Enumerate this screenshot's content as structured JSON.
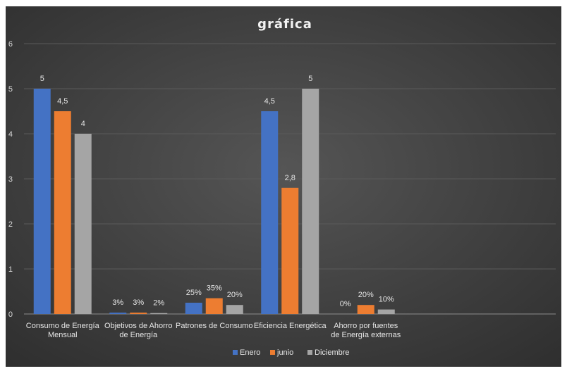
{
  "chart_data": {
    "type": "bar",
    "title": "gráfica",
    "categories": [
      [
        "Consumo de Energía",
        "Mensual"
      ],
      [
        "Objetivos de Ahorro",
        "de Energía"
      ],
      [
        "Patrones de Consumo"
      ],
      [
        "Eficiencia Energética"
      ],
      [
        "Ahorro por fuentes",
        "de Energía  externas"
      ]
    ],
    "series": [
      {
        "name": "Enero",
        "color": "#4472c4",
        "values": [
          5,
          0.03,
          0.25,
          4.5,
          0
        ],
        "labels": [
          "5",
          "3%",
          "25%",
          "4,5",
          "0%"
        ]
      },
      {
        "name": "junio",
        "color": "#ed7d31",
        "values": [
          4.5,
          0.03,
          0.35,
          2.8,
          0.2
        ],
        "labels": [
          "4,5",
          "3%",
          "35%",
          "2,8",
          "20%"
        ]
      },
      {
        "name": "Diciembre",
        "color": "#a5a5a5",
        "values": [
          4,
          0.02,
          0.2,
          5,
          0.1
        ],
        "labels": [
          "4",
          "2%",
          "20%",
          "5",
          "10%"
        ]
      }
    ],
    "yticks": [
      "0",
      "1",
      "2",
      "3",
      "4",
      "5",
      "6"
    ],
    "ylim": [
      0,
      6
    ],
    "grid": true,
    "legend_position": "bottom",
    "background": "#404040"
  }
}
